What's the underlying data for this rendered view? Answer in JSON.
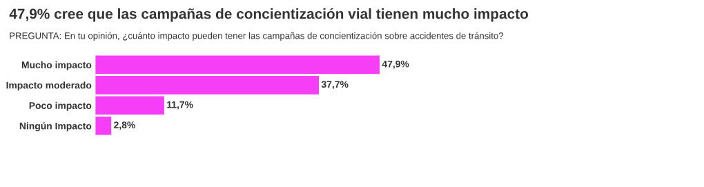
{
  "chart_data": {
    "type": "bar",
    "orientation": "horizontal",
    "title": "47,9% cree que las campañas de concientización vial tienen mucho impacto",
    "subtitle": "PREGUNTA: En tu opinión, ¿cuánto impacto pueden tener las campañas de concientización sobre accidentes de tránsito?",
    "categories": [
      "Mucho impacto",
      "Impacto moderado",
      "Poco impacto",
      "Ningún Impacto"
    ],
    "values": [
      47.9,
      37.7,
      11.7,
      2.8
    ],
    "value_labels": [
      "47,9%",
      "37,7%",
      "11,7%",
      "2,8%"
    ],
    "color": "#f73ef7",
    "tick_labels": "y"
  }
}
